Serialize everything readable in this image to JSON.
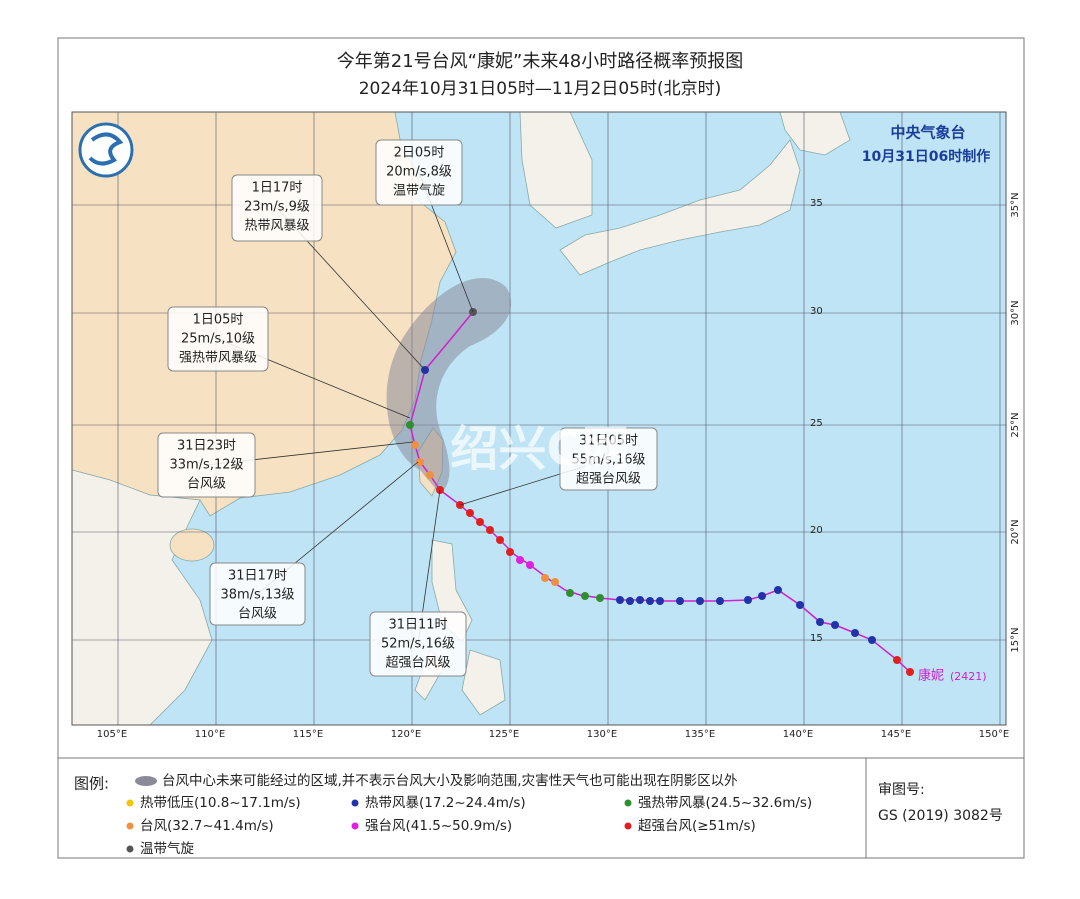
{
  "header": {
    "title": "今年第21号台风“康妮”未来48小时路径概率预报图",
    "subtitle": "2024年10月31日05时—11月2日05时(北京时)"
  },
  "map": {
    "agency": "中央气象台",
    "issued": "10月31日06时制作",
    "longitude_labels": [
      "105°E",
      "110°E",
      "115°E",
      "120°E",
      "125°E",
      "130°E",
      "135°E",
      "140°E",
      "145°E",
      "150°E"
    ],
    "latitude_labels": [
      "15°N",
      "20°N",
      "25°N",
      "30°N",
      "35°N"
    ],
    "grid_labels": [
      "15",
      "20",
      "25",
      "30",
      "35"
    ],
    "watermark": "绍兴C网",
    "callouts": [
      {
        "lines": [
          "2日05时",
          "20m/s,8级",
          "温带气旋"
        ]
      },
      {
        "lines": [
          "1日17时",
          "23m/s,9级",
          "热带风暴级"
        ]
      },
      {
        "lines": [
          "1日05时",
          "25m/s,10级",
          "强热带风暴级"
        ]
      },
      {
        "lines": [
          "31日23时",
          "33m/s,12级",
          "台风级"
        ]
      },
      {
        "lines": [
          "31日17时",
          "38m/s,13级",
          "台风级"
        ]
      },
      {
        "lines": [
          "31日11时",
          "52m/s,16级",
          "超强台风级"
        ]
      },
      {
        "lines": [
          "31日05时",
          "55m/s,16级",
          "超强台风级"
        ]
      }
    ],
    "typhoon": {
      "name": "康妮",
      "code": "(2421)"
    }
  },
  "legend": {
    "title": "图例:",
    "cone": "台风中心未来可能经过的区域,并不表示台风大小及影响范围,灾害性天气也可能出现在阴影区以外",
    "items": [
      {
        "label": "热带低压(10.8~17.1m/s)",
        "color": "#f5c400"
      },
      {
        "label": "热带风暴(17.2~24.4m/s)",
        "color": "#2233aa"
      },
      {
        "label": "强热带风暴(24.5~32.6m/s)",
        "color": "#2f8f2f"
      },
      {
        "label": "台风(32.7~41.4m/s)",
        "color": "#f09040"
      },
      {
        "label": "强台风(41.5~50.9m/s)",
        "color": "#e020e0"
      },
      {
        "label": "超强台风(≥51m/s)",
        "color": "#e02020"
      },
      {
        "label": "温带气旋",
        "color": "#555555"
      }
    ],
    "approval_label": "审图号:",
    "approval_number": "GS (2019) 3082号"
  }
}
